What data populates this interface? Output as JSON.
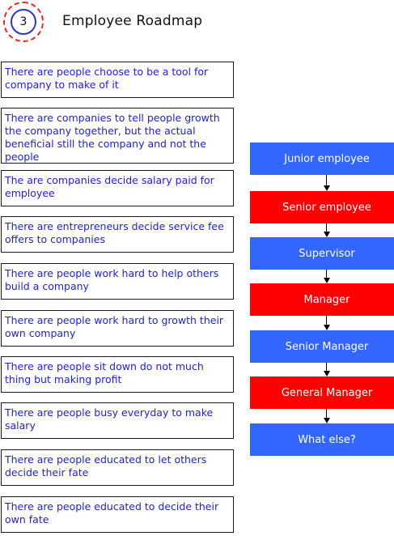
{
  "header": {
    "badge_number": "3",
    "title": "Employee Roadmap"
  },
  "notes": [
    "There are people choose to be a tool for company to make of it",
    "There are companies to tell people growth the company together, but the actual beneficial still the company and not the people",
    "The are companies decide salary paid for employee",
    "There are entrepreneurs decide service fee offers to companies",
    "There are people work hard to help others build a company",
    "There are people work hard to growth their own company",
    "There are people sit down do not much thing but making profit",
    "There are people busy everyday to make salary",
    "There are people educated to let others decide their fate",
    "There are people educated to decide their own fate"
  ],
  "roadmap": [
    {
      "label": "Junior employee",
      "color": "#3366ff"
    },
    {
      "label": "Senior employee",
      "color": "#ff0000"
    },
    {
      "label": "Supervisor",
      "color": "#3366ff"
    },
    {
      "label": "Manager",
      "color": "#ff0000"
    },
    {
      "label": "Senior Manager",
      "color": "#3366ff"
    },
    {
      "label": "General Manager",
      "color": "#ff0000"
    },
    {
      "label": "What else?",
      "color": "#3366ff"
    }
  ]
}
